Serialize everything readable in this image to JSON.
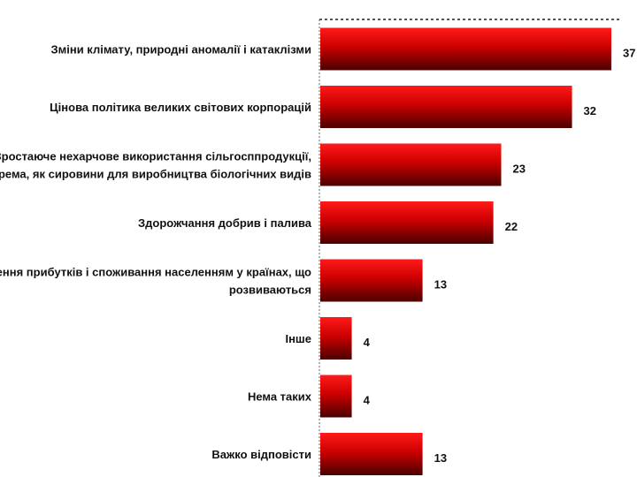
{
  "chart_data": {
    "type": "bar",
    "orientation": "horizontal",
    "categories": [
      [
        "Зміни клімату, природні аномалії і катаклізми"
      ],
      [
        "Цінова політика великих світових корпорацій"
      ],
      [
        "Зростаюче нехарчове використання сільгосппродукції,",
        "зокрема, як сировини для виробництва біологічних видів"
      ],
      [
        "Здорожчання добрив і палива"
      ],
      [
        "збільшення прибутків і споживання населенням у країнах, що",
        "розвиваються"
      ],
      [
        "Інше"
      ],
      [
        "Нема таких"
      ],
      [
        "Важко відповісти"
      ]
    ],
    "values": [
      37,
      32,
      23,
      22,
      13,
      4,
      4,
      13
    ],
    "data_labels": [
      "37",
      "32",
      "23",
      "22",
      "13",
      "4",
      "4",
      "13"
    ],
    "xlim": [
      0,
      37
    ],
    "grid": false,
    "legend": "none",
    "colors": {
      "bar_top": "#ff1a1a",
      "bar_mid": "#cc0000",
      "bar_bottom": "#4a0000",
      "axis": "#666666"
    }
  }
}
